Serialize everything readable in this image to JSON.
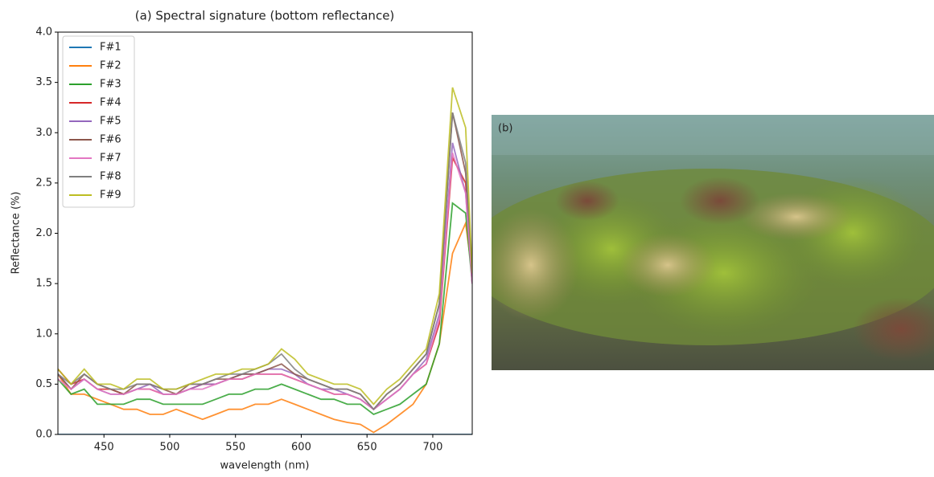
{
  "chart_data": {
    "type": "line",
    "title": "(a) Spectral signature (bottom reflectance)",
    "xlabel": "wavelength (nm)",
    "ylabel": "Reflectance (%)",
    "x": [
      415,
      425,
      435,
      445,
      455,
      465,
      475,
      485,
      495,
      505,
      515,
      525,
      535,
      545,
      555,
      565,
      575,
      585,
      595,
      605,
      615,
      625,
      635,
      645,
      655,
      665,
      675,
      685,
      695,
      705,
      715,
      725,
      730
    ],
    "xlim": [
      415,
      730
    ],
    "xticks": [
      450,
      500,
      550,
      600,
      650,
      700
    ],
    "ylim": [
      0,
      4
    ],
    "yticks": [
      {
        "value": 0,
        "label": "0.0"
      },
      {
        "value": 0.5,
        "label": "0.5"
      },
      {
        "value": 1,
        "label": "1.0"
      },
      {
        "value": 1.5,
        "label": "1.5"
      },
      {
        "value": 2,
        "label": "2.0"
      },
      {
        "value": 2.5,
        "label": "2.5"
      },
      {
        "value": 3,
        "label": "3.0"
      },
      {
        "value": 3.5,
        "label": "3.5"
      },
      {
        "value": 4,
        "label": "4.0"
      }
    ],
    "legend": "upper left",
    "series": [
      {
        "name": "F#1",
        "color": "#1f77b4",
        "values": [
          0,
          0,
          0,
          0,
          0,
          0,
          0,
          0,
          0,
          0,
          0,
          0,
          0,
          0,
          0,
          0,
          0,
          0,
          0,
          0,
          0,
          0,
          0,
          0,
          0,
          0,
          0,
          0,
          0,
          0,
          0,
          0,
          0
        ]
      },
      {
        "name": "F#2",
        "color": "#ff7f0e",
        "values": [
          0.6,
          0.4,
          0.4,
          0.35,
          0.3,
          0.25,
          0.25,
          0.2,
          0.2,
          0.25,
          0.2,
          0.15,
          0.2,
          0.25,
          0.25,
          0.3,
          0.3,
          0.35,
          0.3,
          0.25,
          0.2,
          0.15,
          0.12,
          0.1,
          0.02,
          0.1,
          0.2,
          0.3,
          0.5,
          0.9,
          1.8,
          2.1,
          1.6
        ]
      },
      {
        "name": "F#3",
        "color": "#2ca02c",
        "values": [
          0.55,
          0.4,
          0.45,
          0.3,
          0.3,
          0.3,
          0.35,
          0.35,
          0.3,
          0.3,
          0.3,
          0.3,
          0.35,
          0.4,
          0.4,
          0.45,
          0.45,
          0.5,
          0.45,
          0.4,
          0.35,
          0.35,
          0.3,
          0.3,
          0.2,
          0.25,
          0.3,
          0.4,
          0.5,
          0.9,
          2.3,
          2.2,
          1.5
        ]
      },
      {
        "name": "F#4",
        "color": "#d62728",
        "values": [
          0.65,
          0.5,
          0.55,
          0.45,
          0.45,
          0.4,
          0.45,
          0.45,
          0.4,
          0.4,
          0.45,
          0.5,
          0.5,
          0.55,
          0.55,
          0.6,
          0.6,
          0.6,
          0.55,
          0.5,
          0.45,
          0.4,
          0.4,
          0.35,
          0.25,
          0.35,
          0.45,
          0.6,
          0.7,
          1.1,
          2.75,
          2.5,
          1.5
        ]
      },
      {
        "name": "F#5",
        "color": "#9467bd",
        "values": [
          0.6,
          0.45,
          0.55,
          0.45,
          0.4,
          0.4,
          0.45,
          0.5,
          0.4,
          0.4,
          0.45,
          0.5,
          0.5,
          0.55,
          0.6,
          0.6,
          0.65,
          0.65,
          0.6,
          0.5,
          0.45,
          0.45,
          0.4,
          0.35,
          0.25,
          0.35,
          0.45,
          0.6,
          0.75,
          1.2,
          2.9,
          2.4,
          1.5
        ]
      },
      {
        "name": "F#6",
        "color": "#8c564b",
        "values": [
          0.6,
          0.45,
          0.6,
          0.5,
          0.45,
          0.4,
          0.5,
          0.5,
          0.45,
          0.4,
          0.5,
          0.5,
          0.55,
          0.55,
          0.6,
          0.6,
          0.65,
          0.7,
          0.6,
          0.55,
          0.5,
          0.45,
          0.45,
          0.4,
          0.25,
          0.4,
          0.5,
          0.65,
          0.8,
          1.3,
          3.2,
          2.6,
          1.6
        ]
      },
      {
        "name": "F#7",
        "color": "#e377c2",
        "values": [
          0.55,
          0.45,
          0.55,
          0.45,
          0.4,
          0.4,
          0.45,
          0.45,
          0.4,
          0.4,
          0.45,
          0.45,
          0.5,
          0.55,
          0.55,
          0.6,
          0.6,
          0.6,
          0.55,
          0.5,
          0.45,
          0.4,
          0.4,
          0.35,
          0.25,
          0.35,
          0.45,
          0.6,
          0.7,
          1.15,
          2.8,
          2.4,
          1.5
        ]
      },
      {
        "name": "F#8",
        "color": "#7f7f7f",
        "values": [
          0.6,
          0.5,
          0.6,
          0.5,
          0.45,
          0.45,
          0.5,
          0.5,
          0.45,
          0.45,
          0.5,
          0.5,
          0.55,
          0.6,
          0.6,
          0.65,
          0.7,
          0.8,
          0.65,
          0.55,
          0.5,
          0.45,
          0.45,
          0.4,
          0.25,
          0.4,
          0.5,
          0.65,
          0.8,
          1.3,
          3.2,
          2.7,
          1.6
        ]
      },
      {
        "name": "F#9",
        "color": "#bcbd22",
        "values": [
          0.65,
          0.5,
          0.65,
          0.5,
          0.5,
          0.45,
          0.55,
          0.55,
          0.45,
          0.45,
          0.5,
          0.55,
          0.6,
          0.6,
          0.65,
          0.65,
          0.7,
          0.85,
          0.75,
          0.6,
          0.55,
          0.5,
          0.5,
          0.45,
          0.3,
          0.45,
          0.55,
          0.7,
          0.85,
          1.4,
          3.45,
          3.05,
          1.6
        ]
      }
    ]
  },
  "photo": {
    "label": "(b)"
  }
}
